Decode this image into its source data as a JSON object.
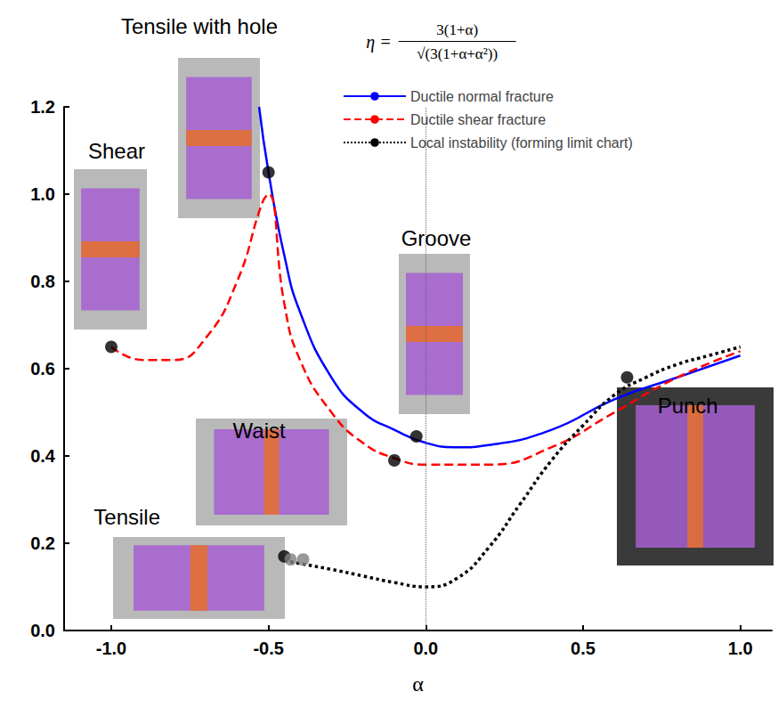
{
  "chart_data": {
    "type": "line",
    "x_label": "α",
    "equation": {
      "lhs": "η =",
      "numerator": "3(1+α)",
      "denominator": "√(3(1+α+α²))",
      "x": 0.1,
      "y": 1.35
    },
    "xlim": [
      -1.15,
      1.1
    ],
    "xticks": [
      {
        "value": -1,
        "label": "-1.0"
      },
      -0.5,
      {
        "value": 0,
        "label": "0.0"
      },
      0.5,
      {
        "value": 1,
        "label": "1.0"
      }
    ],
    "ylim": [
      0,
      1.2
    ],
    "yticks": [
      {
        "value": 0,
        "label": "0.0"
      },
      0.2,
      0.4,
      0.6,
      0.8,
      {
        "value": 1,
        "label": "1.0"
      },
      {
        "value": 1.2,
        "label": "1.2"
      }
    ],
    "grid": false,
    "legend": "top-right",
    "vertical_lines": [
      0
    ],
    "series": [
      {
        "name": "Ductile normal fracture",
        "color": "#0000ff",
        "line_style": "solid",
        "x": [
          -0.53,
          -0.5,
          -0.45,
          -0.4,
          -0.3,
          -0.2,
          -0.1,
          0.0,
          0.1,
          0.2,
          0.4,
          0.6,
          0.8,
          1.0
        ],
        "values": [
          1.2,
          1.05,
          0.86,
          0.73,
          0.58,
          0.5,
          0.46,
          0.43,
          0.42,
          0.425,
          0.46,
          0.53,
          0.58,
          0.63
        ]
      },
      {
        "name": "Ductile shear fracture",
        "color": "#ff0000",
        "line_style": "dashed",
        "x": [
          -1.0,
          -0.9,
          -0.8,
          -0.7,
          -0.6,
          -0.52,
          -0.5,
          -0.45,
          -0.4,
          -0.3,
          -0.2,
          -0.1,
          0.0,
          0.2,
          0.4,
          0.6,
          0.8,
          1.0
        ],
        "values": [
          0.65,
          0.62,
          0.62,
          0.67,
          0.8,
          0.98,
          1.0,
          0.75,
          0.62,
          0.5,
          0.43,
          0.395,
          0.38,
          0.38,
          0.42,
          0.5,
          0.58,
          0.64
        ]
      },
      {
        "name": "Local instability (forming limit chart)",
        "color": "#000000",
        "line_style": "dotted",
        "x": [
          -0.45,
          -0.3,
          -0.2,
          -0.1,
          0.0,
          0.1,
          0.2,
          0.3,
          0.4,
          0.5,
          0.6,
          0.7,
          0.8,
          0.9,
          1.0
        ],
        "values": [
          0.16,
          0.14,
          0.125,
          0.11,
          0.1,
          0.12,
          0.19,
          0.29,
          0.39,
          0.47,
          0.54,
          0.58,
          0.61,
          0.63,
          0.65
        ]
      }
    ],
    "points": [
      {
        "color": "#000000",
        "marker": "circle",
        "x": [
          -1.0,
          -0.5,
          -0.03,
          -0.1,
          -0.45,
          0.64
        ],
        "y": [
          0.65,
          1.05,
          0.445,
          0.39,
          0.17,
          0.58
        ]
      },
      {
        "color": "#808080",
        "marker": "circle",
        "x": [
          -0.43,
          -0.39
        ],
        "y": [
          0.163,
          0.163
        ]
      }
    ],
    "annotations": [
      {
        "text": "Tensile with hole",
        "x": -0.72,
        "y": 1.384
      },
      {
        "text": "Shear",
        "x": -0.983,
        "y": 1.098
      },
      {
        "text": "Groove",
        "x": 0.033,
        "y": 0.898
      },
      {
        "text": "Waist",
        "x": -0.53,
        "y": 0.459
      },
      {
        "text": "Tensile",
        "x": -0.95,
        "y": 0.261
      },
      {
        "text": "Punch",
        "x": 0.833,
        "y": 0.516
      }
    ]
  }
}
